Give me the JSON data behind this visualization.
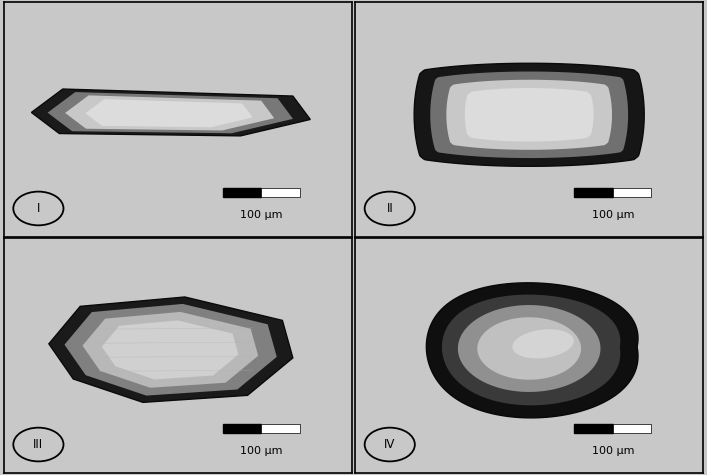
{
  "bg_color": "#c8c8c8",
  "panel_bg": "#c8c8c8",
  "border_color": "#000000",
  "figsize": [
    7.07,
    4.75
  ],
  "dpi": 100,
  "scale_bar_text": "100 μm",
  "labels": [
    "I",
    "II",
    "III",
    "IV"
  ],
  "outer_border": "#1a1a1a",
  "crystal_dark": "#1c1c1c",
  "crystal_mid": "#909090",
  "crystal_light": "#d0d0d0",
  "crystal_bright": "#e0e0e0"
}
